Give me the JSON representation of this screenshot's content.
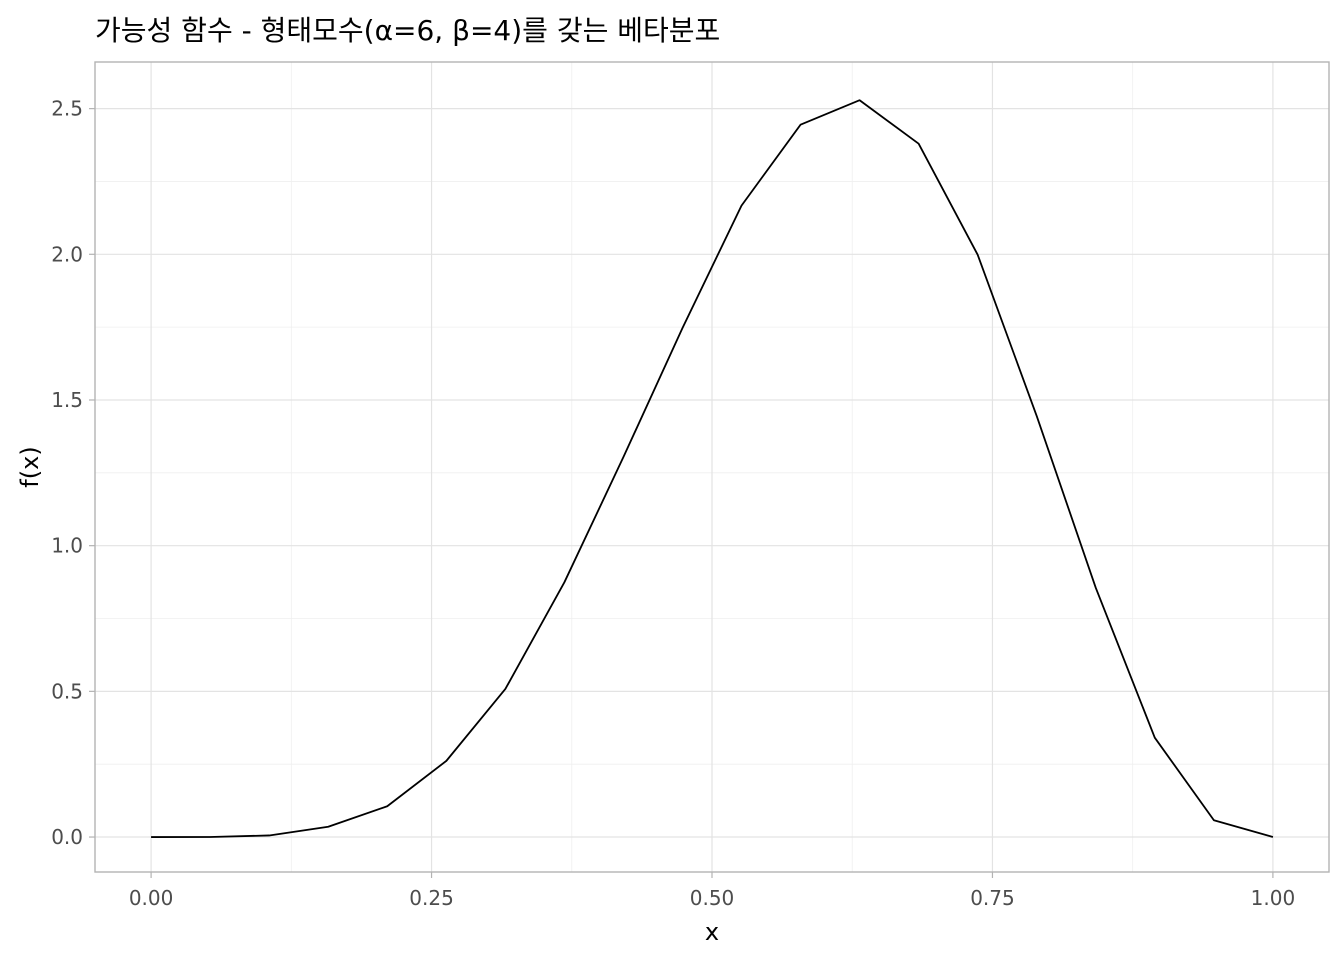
{
  "chart_data": {
    "type": "line",
    "title": "가능성 함수 - 형태모수(α=6, β=4)를 갖는 베타분포",
    "xlabel": "x",
    "ylabel": "f(x)",
    "xlim": [
      -0.05,
      1.05
    ],
    "ylim": [
      -0.12,
      2.66
    ],
    "xticks": [
      0.0,
      0.25,
      0.5,
      0.75,
      1.0
    ],
    "xtick_labels": [
      "0.00",
      "0.25",
      "0.50",
      "0.75",
      "1.00"
    ],
    "yticks": [
      0.0,
      0.5,
      1.0,
      1.5,
      2.0,
      2.5
    ],
    "ytick_labels": [
      "0.0",
      "0.5",
      "1.0",
      "1.5",
      "2.0",
      "2.5"
    ],
    "grid": true,
    "legend": "none",
    "series": [
      {
        "x": [
          0.0,
          0.0526,
          0.1053,
          0.1579,
          0.2105,
          0.2632,
          0.3158,
          0.3684,
          0.4211,
          0.4737,
          0.5263,
          0.5789,
          0.6316,
          0.6842,
          0.7368,
          0.7895,
          0.8421,
          0.8947,
          0.9474,
          1.0
        ],
        "y": [
          0.0,
          0.0002,
          0.0054,
          0.0353,
          0.1056,
          0.2614,
          0.5081,
          0.8742,
          1.3046,
          1.747,
          2.1671,
          2.4447,
          2.5288,
          2.3797,
          1.9986,
          1.4444,
          0.8554,
          0.341,
          0.0575,
          0.0
        ],
        "color": "#000000"
      }
    ]
  }
}
